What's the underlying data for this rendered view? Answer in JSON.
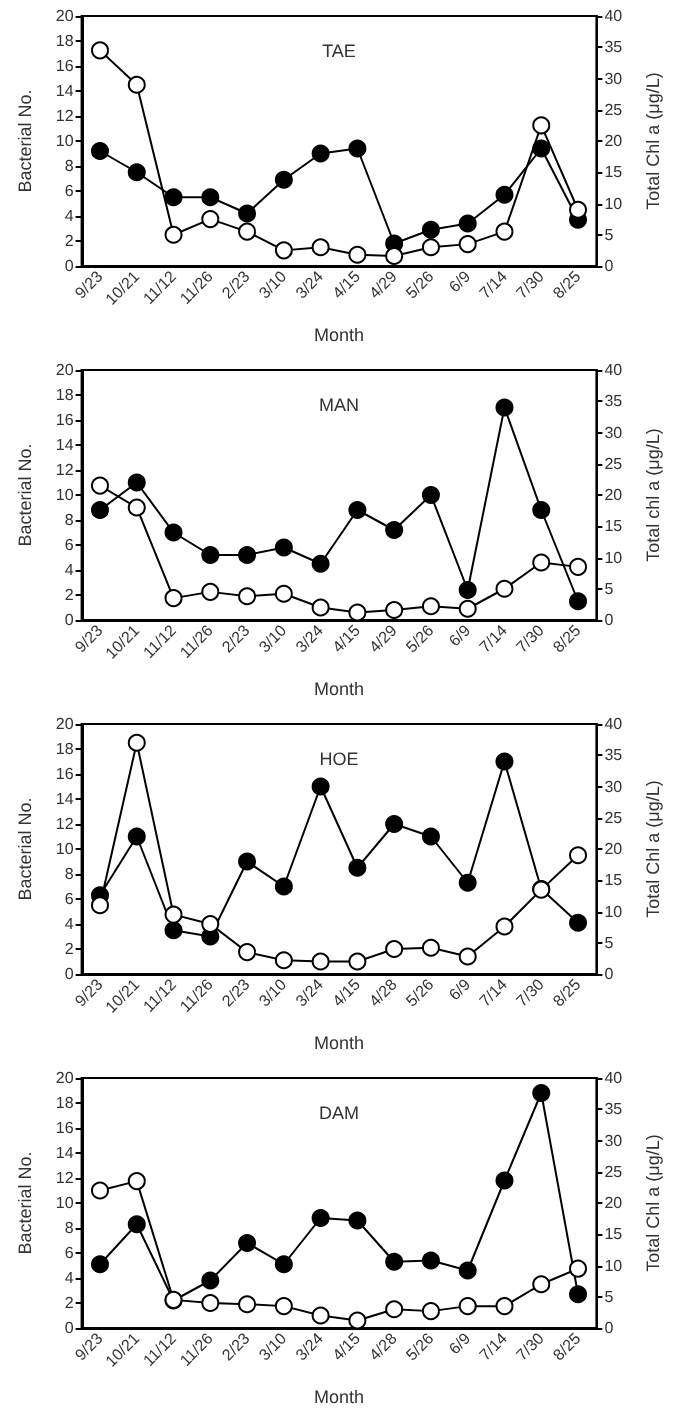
{
  "chart_data": [
    {
      "type": "line",
      "title": "TAE",
      "xlabel": "Month",
      "ylabel": "Bacterial No.",
      "y2label": "Total Chl a (μg/L)",
      "marker": "circle",
      "categories": [
        "9/23",
        "10/21",
        "11/12",
        "11/26",
        "2/23",
        "3/10",
        "3/24",
        "4/15",
        "4/29",
        "5/26",
        "6/9",
        "7/14",
        "7/30",
        "8/25"
      ],
      "ylim": [
        0,
        20
      ],
      "yticks": [
        0,
        2,
        4,
        6,
        8,
        10,
        12,
        14,
        16,
        18,
        20
      ],
      "y2lim": [
        0,
        40
      ],
      "y2ticks": [
        0,
        5,
        10,
        15,
        20,
        25,
        30,
        35,
        40
      ],
      "series": [
        {
          "color": "#000000",
          "values": [
            9.2,
            7.5,
            5.5,
            5.5,
            4.2,
            6.9,
            9.0,
            9.4,
            1.8,
            2.9,
            3.4,
            5.7,
            9.4,
            3.7
          ]
        },
        {
          "color": "#ffffff",
          "axis": "y2",
          "values": [
            34.5,
            29,
            5,
            7.5,
            5.5,
            2.5,
            3,
            1.8,
            1.6,
            3,
            3.5,
            5.5,
            22.5,
            9
          ]
        }
      ]
    },
    {
      "type": "line",
      "title": "MAN",
      "xlabel": "Month",
      "ylabel": "Bacterial No.",
      "y2label": "Total chl a (μg/L)",
      "marker": "circle",
      "categories": [
        "9/23",
        "10/21",
        "11/12",
        "11/26",
        "2/23",
        "3/10",
        "3/24",
        "4/15",
        "4/29",
        "5/26",
        "6/9",
        "7/14",
        "7/30",
        "8/25"
      ],
      "ylim": [
        0,
        20
      ],
      "yticks": [
        0,
        2,
        4,
        6,
        8,
        10,
        12,
        14,
        16,
        18,
        20
      ],
      "y2lim": [
        0,
        40
      ],
      "y2ticks": [
        0,
        5,
        10,
        15,
        20,
        25,
        30,
        35,
        40
      ],
      "series": [
        {
          "color": "#000000",
          "values": [
            8.8,
            11,
            7,
            5.2,
            5.2,
            5.8,
            4.5,
            8.8,
            7.2,
            10,
            2.4,
            17,
            8.8,
            1.5
          ]
        },
        {
          "color": "#ffffff",
          "axis": "y2",
          "values": [
            21.5,
            18,
            3.5,
            4.5,
            3.8,
            4.2,
            2,
            1.2,
            1.6,
            2.2,
            1.8,
            5,
            9.2,
            8.5
          ]
        }
      ]
    },
    {
      "type": "line",
      "title": "HOE",
      "xlabel": "Month",
      "ylabel": "Bacterial No.",
      "y2label": "Total Chl a (μg/L)",
      "marker": "circle",
      "categories": [
        "9/23",
        "10/21",
        "11/12",
        "11/26",
        "2/23",
        "3/10",
        "3/24",
        "4/15",
        "4/28",
        "5/26",
        "6/9",
        "7/14",
        "7/30",
        "8/25"
      ],
      "ylim": [
        0,
        20
      ],
      "yticks": [
        0,
        2,
        4,
        6,
        8,
        10,
        12,
        14,
        16,
        18,
        20
      ],
      "y2lim": [
        0,
        40
      ],
      "y2ticks": [
        0,
        5,
        10,
        15,
        20,
        25,
        30,
        35,
        40
      ],
      "series": [
        {
          "color": "#000000",
          "values": [
            6.3,
            11,
            3.5,
            3,
            9,
            7,
            15,
            8.5,
            12,
            11,
            7.3,
            17,
            6.8,
            4.1
          ]
        },
        {
          "color": "#ffffff",
          "axis": "y2",
          "values": [
            11,
            37,
            9.5,
            8,
            3.5,
            2.2,
            2,
            2,
            4,
            4.2,
            2.8,
            7.6,
            13.5,
            19
          ]
        }
      ]
    },
    {
      "type": "line",
      "title": "DAM",
      "xlabel": "Month",
      "ylabel": "Bacterial No.",
      "y2label": "Total Chl a (μg/L)",
      "marker": "circle",
      "categories": [
        "9/23",
        "10/21",
        "11/12",
        "11/26",
        "2/23",
        "3/10",
        "3/24",
        "4/15",
        "4/28",
        "5/26",
        "6/9",
        "7/14",
        "7/30",
        "8/25"
      ],
      "ylim": [
        0,
        20
      ],
      "yticks": [
        0,
        2,
        4,
        6,
        8,
        10,
        12,
        14,
        16,
        18,
        20
      ],
      "y2lim": [
        0,
        40
      ],
      "y2ticks": [
        0,
        5,
        10,
        15,
        20,
        25,
        30,
        35,
        40
      ],
      "series": [
        {
          "color": "#000000",
          "values": [
            5.1,
            8.3,
            2.2,
            3.8,
            6.8,
            5.1,
            8.8,
            8.6,
            5.3,
            5.4,
            4.6,
            11.8,
            18.8,
            2.7
          ]
        },
        {
          "color": "#ffffff",
          "axis": "y2",
          "values": [
            22,
            23.5,
            4.5,
            4,
            3.8,
            3.5,
            2,
            1.2,
            3,
            2.7,
            3.5,
            3.5,
            7,
            9.5
          ]
        }
      ]
    }
  ]
}
